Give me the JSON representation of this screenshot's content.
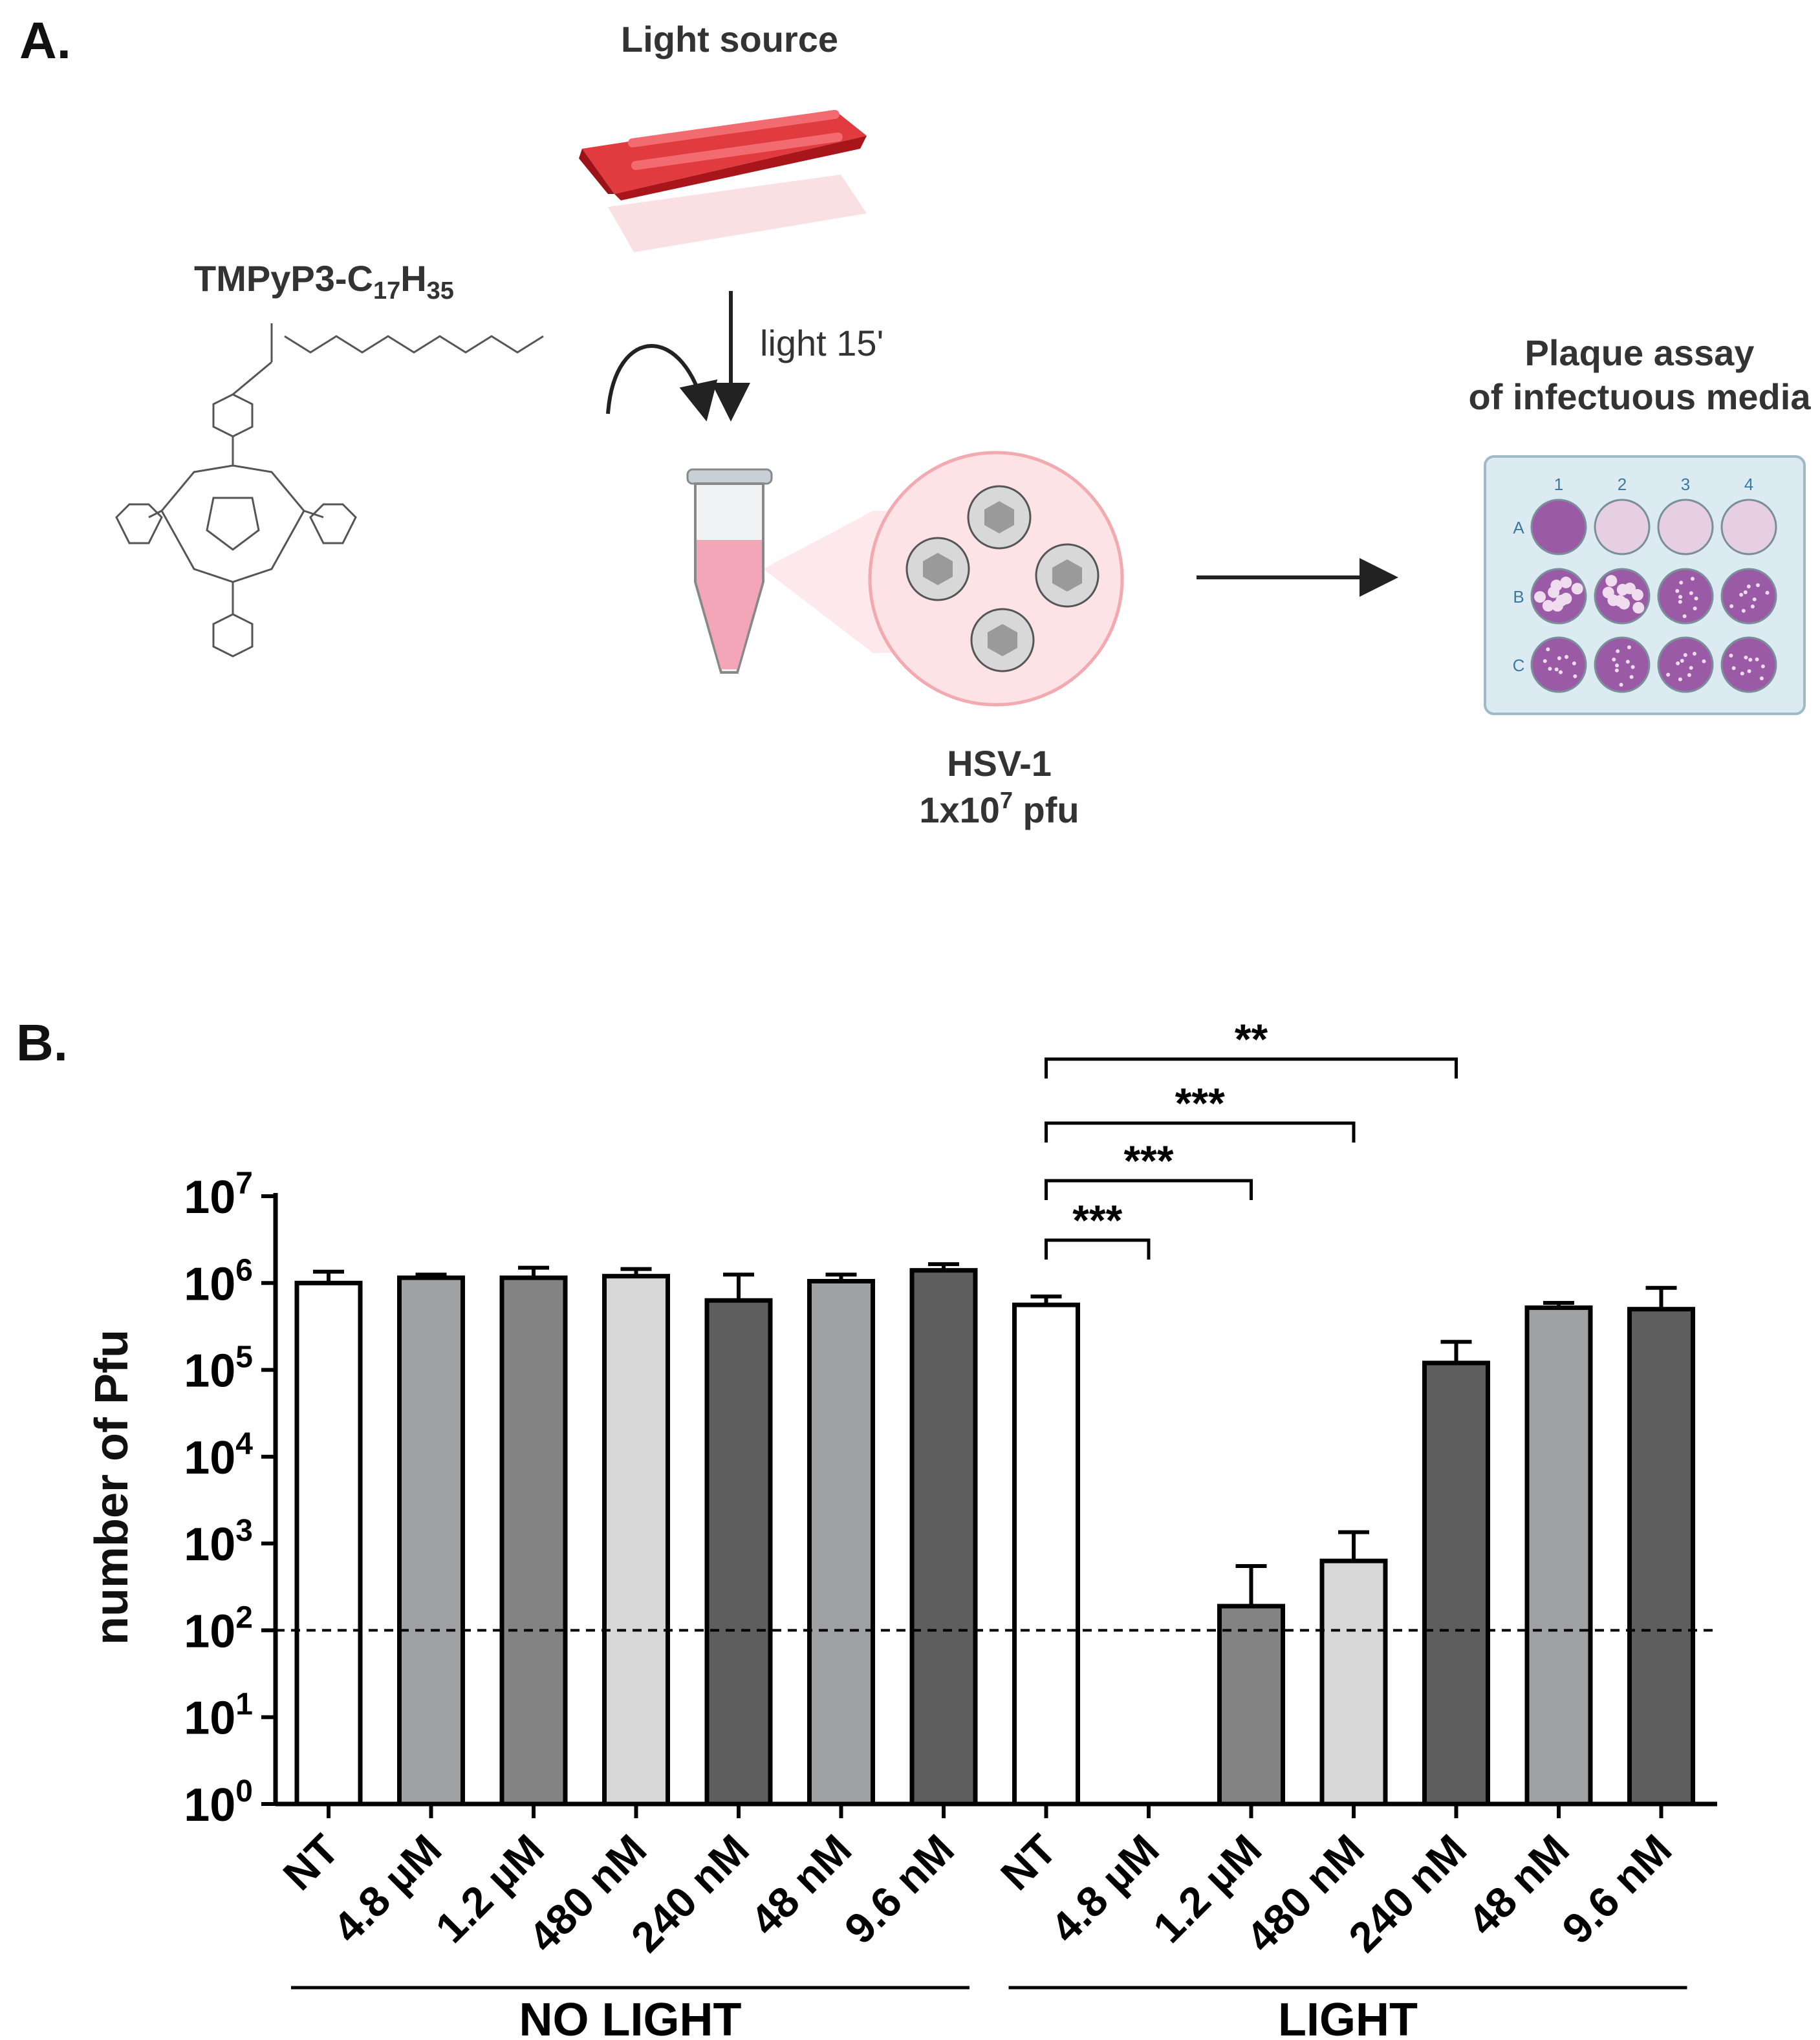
{
  "panel_a": {
    "label": "A.",
    "light_source_label": "Light source",
    "compound_name": "TMPyP3-C",
    "compound_sub1": "17",
    "compound_h": "H",
    "compound_sub2": "35",
    "light_label": "light 15'",
    "virus_line1": "HSV-1",
    "virus_line2_base": "1x10",
    "virus_line2_exp": "7",
    "virus_line2_unit": " pfu",
    "plaque_title_line1": "Plaque assay",
    "plaque_title_line2": "of infectuous media",
    "plate_columns": [
      "1",
      "2",
      "3",
      "4"
    ],
    "plate_rows": [
      "A",
      "B",
      "C"
    ],
    "plate_colors": {
      "dark_well": "#9a5aa6",
      "light_well": "#e6cfe3",
      "plate_fill": "#dcebf2",
      "tube_liquid": "#f3a6b8",
      "lamp_red": "#d32127"
    }
  },
  "chart_data": {
    "panel_label": "B.",
    "type": "bar",
    "yscale": "log",
    "ylabel": "number of Pfu",
    "ylim": [
      1,
      10000000
    ],
    "ytick_bases": [
      "10",
      "10",
      "10",
      "10",
      "10",
      "10",
      "10",
      "10"
    ],
    "ytick_exponents": [
      "0",
      "1",
      "2",
      "3",
      "4",
      "5",
      "6",
      "7"
    ],
    "detection_limit": 100,
    "categories": [
      "NT",
      "4.8 µM",
      "1.2 µM",
      "480 nM",
      "240 nM",
      "48 nM",
      "9.6 nM",
      "NT",
      "4.8 µM",
      "1.2 µM",
      "480 nM",
      "240 nM",
      "48 nM",
      "9.6 nM"
    ],
    "values": [
      1000000,
      1150000,
      1150000,
      1200000,
      630000,
      1050000,
      1400000,
      560000,
      1,
      190,
      630,
      120000,
      520000,
      500000
    ],
    "errors_upper": [
      1350000,
      1250000,
      1500000,
      1450000,
      1250000,
      1250000,
      1650000,
      700000,
      1,
      550,
      1350,
      210000,
      590000,
      880000
    ],
    "bar_colors": [
      "#ffffff",
      "#a0a1a5",
      "#828382",
      "#d6d7d6",
      "#5e5e5e",
      "#a0a1a5",
      "#5e5e5e",
      "#ffffff",
      "#a0a1a5",
      "#828382",
      "#d6d7d6",
      "#5e5e5e",
      "#a0a1a5",
      "#5e5e5e"
    ],
    "groups": [
      {
        "label": "NO LIGHT",
        "start": 0,
        "end": 6
      },
      {
        "label": "LIGHT",
        "start": 7,
        "end": 13
      }
    ],
    "significance": [
      {
        "from": 7,
        "to": 8,
        "label": "***"
      },
      {
        "from": 7,
        "to": 9,
        "label": "***"
      },
      {
        "from": 7,
        "to": 10,
        "label": "***"
      },
      {
        "from": 7,
        "to": 11,
        "label": "**"
      }
    ]
  }
}
